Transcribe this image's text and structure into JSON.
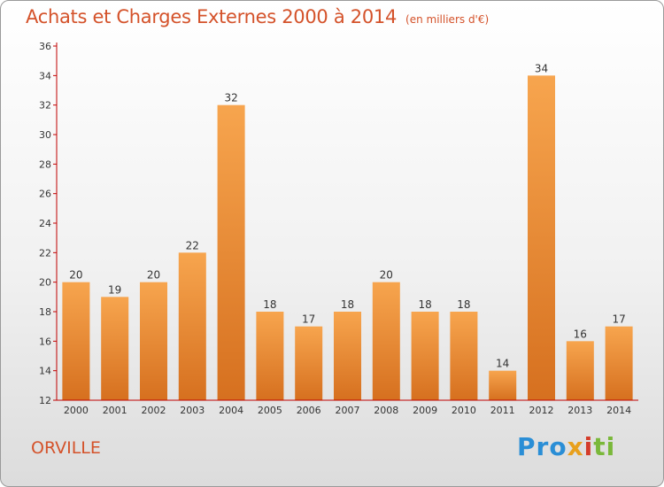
{
  "title": "Achats et Charges Externes 2000 à 2014",
  "unit": "(en milliers d'€)",
  "commune": "ORVILLE",
  "logo": {
    "part1": "Pro",
    "part2": "x",
    "part3": "i",
    "part4": "ti"
  },
  "colors": {
    "bar_top": "#f7a54e",
    "bar_bottom": "#d6701f",
    "title": "#d4522a",
    "axis": "#c00000"
  },
  "chart_data": {
    "type": "bar",
    "title": "Achats et Charges Externes 2000 à 2014",
    "xlabel": "",
    "ylabel": "",
    "ylim": [
      12,
      36
    ],
    "yticks": [
      "12",
      "14",
      "16",
      "18",
      "20",
      "22",
      "24",
      "26",
      "28",
      "30",
      "32",
      "34",
      "36"
    ],
    "grid": false,
    "categories": [
      "2000",
      "2001",
      "2002",
      "2003",
      "2004",
      "2005",
      "2006",
      "2007",
      "2008",
      "2009",
      "2010",
      "2011",
      "2012",
      "2013",
      "2014"
    ],
    "values": [
      20,
      19,
      20,
      22,
      32,
      18,
      17,
      18,
      20,
      18,
      18,
      14,
      34,
      16,
      17
    ],
    "value_labels": [
      "20",
      "19",
      "20",
      "22",
      "32",
      "18",
      "17",
      "18",
      "20",
      "18",
      "18",
      "14",
      "34",
      "16",
      "17"
    ]
  }
}
